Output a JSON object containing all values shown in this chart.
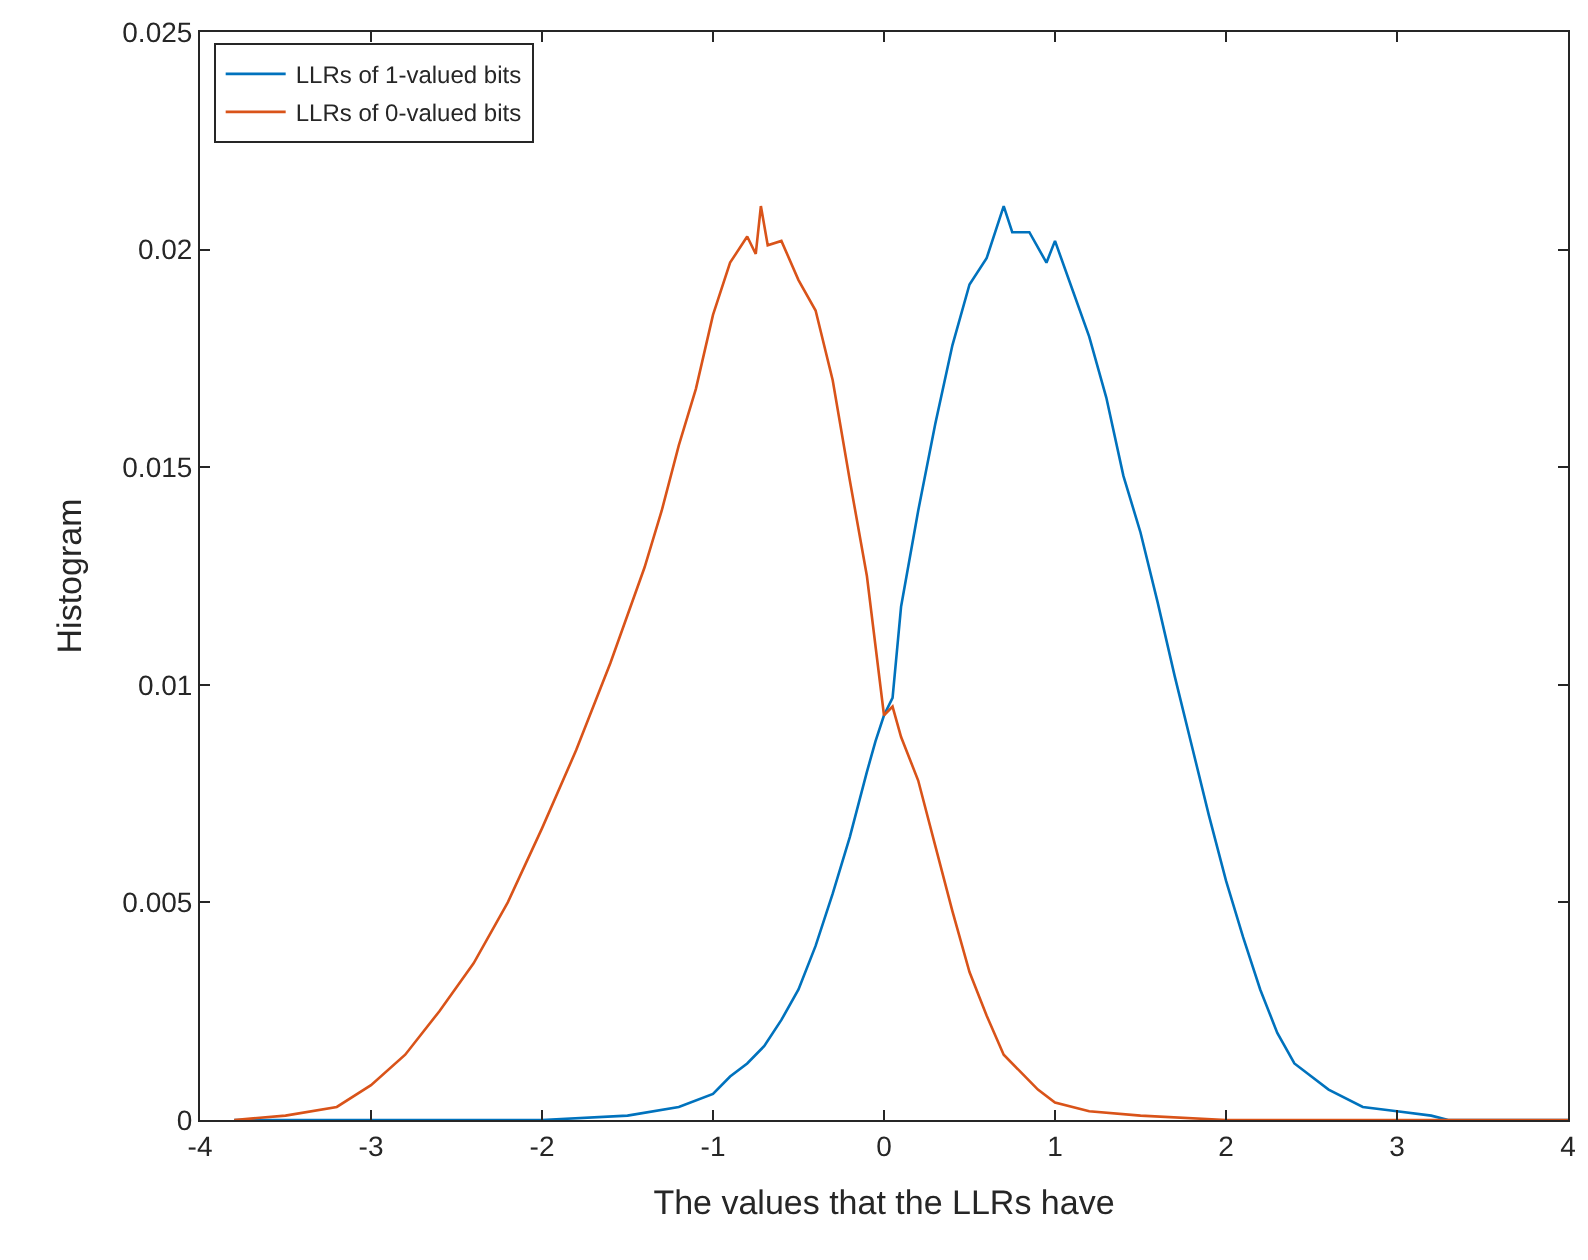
{
  "chart_data": {
    "type": "line",
    "xlabel": "The values that the LLRs have",
    "ylabel": "Histogram",
    "xlim": [
      -4,
      4
    ],
    "xticks": [
      -4,
      -3,
      -2,
      -1,
      0,
      1,
      2,
      3,
      4
    ],
    "ylim": [
      0,
      0.025
    ],
    "yticks": [
      0,
      0.005,
      0.01,
      0.015,
      0.02,
      0.025
    ],
    "legend": "top left",
    "marker": "none",
    "line_style": "solid",
    "series": [
      {
        "name": "LLRs of 1-valued bits",
        "color": "#0072bd",
        "x": [
          -3.8,
          -2,
          -1.5,
          -1.2,
          -1.0,
          -0.9,
          -0.8,
          -0.7,
          -0.6,
          -0.5,
          -0.4,
          -0.3,
          -0.2,
          -0.1,
          -0.05,
          0,
          0.05,
          0.1,
          0.2,
          0.3,
          0.4,
          0.5,
          0.6,
          0.7,
          0.75,
          0.85,
          0.95,
          1.0,
          1.1,
          1.2,
          1.3,
          1.4,
          1.5,
          1.6,
          1.7,
          1.8,
          1.9,
          2.0,
          2.1,
          2.2,
          2.3,
          2.4,
          2.6,
          2.8,
          3.0,
          3.2,
          3.3,
          4
        ],
        "values": [
          0,
          0,
          0.0001,
          0.0003,
          0.0006,
          0.001,
          0.0013,
          0.0017,
          0.0023,
          0.003,
          0.004,
          0.0052,
          0.0065,
          0.008,
          0.0087,
          0.0093,
          0.0097,
          0.0118,
          0.014,
          0.016,
          0.0178,
          0.0192,
          0.0198,
          0.021,
          0.0204,
          0.0204,
          0.0197,
          0.0202,
          0.0191,
          0.018,
          0.0166,
          0.0148,
          0.0135,
          0.0119,
          0.0102,
          0.0086,
          0.007,
          0.0055,
          0.0042,
          0.003,
          0.002,
          0.0013,
          0.0007,
          0.0003,
          0.0002,
          0.0001,
          0,
          0
        ]
      },
      {
        "name": "LLRs of 0-valued bits",
        "color": "#d95319",
        "x": [
          -3.8,
          -3.5,
          -3.2,
          -3.0,
          -2.8,
          -2.6,
          -2.4,
          -2.2,
          -2.0,
          -1.8,
          -1.6,
          -1.4,
          -1.3,
          -1.2,
          -1.1,
          -1.0,
          -0.9,
          -0.8,
          -0.75,
          -0.72,
          -0.68,
          -0.6,
          -0.5,
          -0.4,
          -0.3,
          -0.2,
          -0.1,
          0.0,
          0.05,
          0.1,
          0.2,
          0.3,
          0.4,
          0.5,
          0.6,
          0.7,
          0.8,
          0.9,
          1.0,
          1.2,
          1.5,
          2,
          3,
          4
        ],
        "values": [
          0,
          0.0001,
          0.0003,
          0.0008,
          0.0015,
          0.0025,
          0.0036,
          0.005,
          0.0067,
          0.0085,
          0.0105,
          0.0127,
          0.014,
          0.0155,
          0.0168,
          0.0185,
          0.0197,
          0.0203,
          0.0199,
          0.021,
          0.0201,
          0.0202,
          0.0193,
          0.0186,
          0.017,
          0.0147,
          0.0125,
          0.0093,
          0.0095,
          0.0088,
          0.0078,
          0.0063,
          0.0048,
          0.0034,
          0.0024,
          0.0015,
          0.0011,
          0.0007,
          0.0004,
          0.0002,
          0.0001,
          0,
          0,
          0
        ]
      }
    ]
  }
}
